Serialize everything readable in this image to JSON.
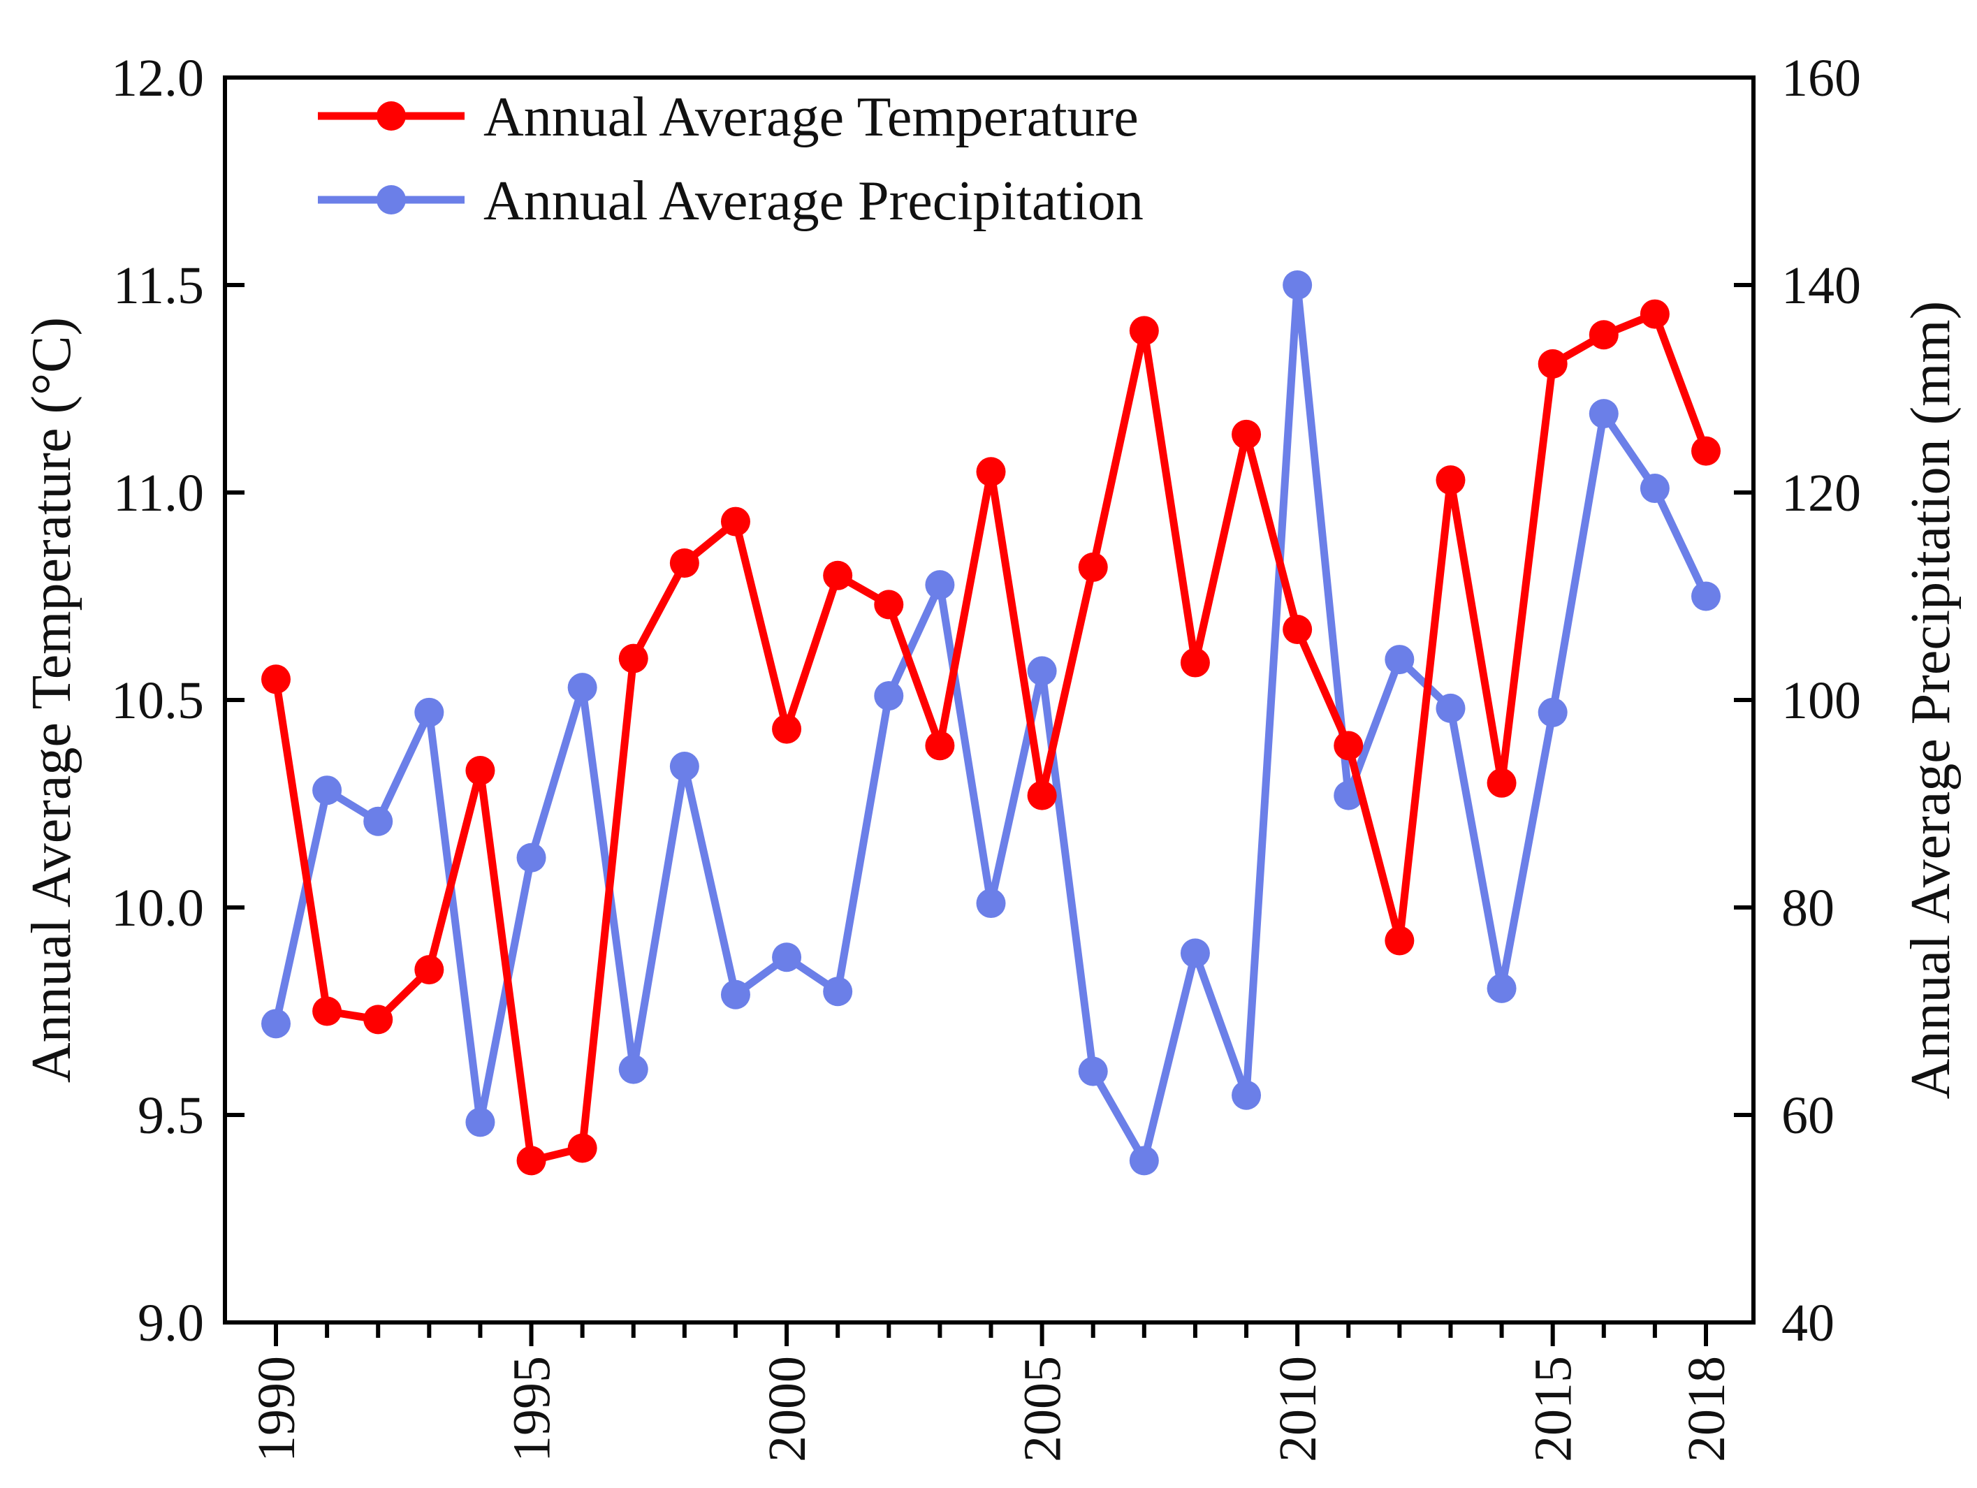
{
  "chart_data": {
    "type": "line",
    "title": "",
    "xlabel": "",
    "x": [
      1990,
      1991,
      1992,
      1993,
      1994,
      1995,
      1996,
      1997,
      1998,
      1999,
      2000,
      2001,
      2002,
      2003,
      2004,
      2005,
      2006,
      2007,
      2008,
      2009,
      2010,
      2011,
      2012,
      2013,
      2014,
      2015,
      2016,
      2017,
      2018
    ],
    "x_tick_labels": [
      "1990",
      "1995",
      "2000",
      "2005",
      "2010",
      "2015",
      "2018"
    ],
    "x_tick_values": [
      1990,
      1995,
      2000,
      2005,
      2010,
      2015,
      2018
    ],
    "left_axis": {
      "label": "Annual Average Temperature (°C)",
      "ylim": [
        9.0,
        12.0
      ],
      "ticks": [
        "9.0",
        "9.5",
        "10.0",
        "10.5",
        "11.0",
        "11.5",
        "12.0"
      ]
    },
    "right_axis": {
      "label": "Annual Average Precipitation (mm)",
      "ylim": [
        40,
        160
      ],
      "ticks": [
        "40",
        "60",
        "80",
        "100",
        "120",
        "140",
        "160"
      ]
    },
    "legend_position": "top-left",
    "series": [
      {
        "name": "Annual Average Temperature",
        "axis": "left",
        "color": "#ff0000",
        "values": [
          10.55,
          9.75,
          9.73,
          9.85,
          10.33,
          9.39,
          9.42,
          10.6,
          10.83,
          10.93,
          10.43,
          10.8,
          10.73,
          10.39,
          11.05,
          10.27,
          10.82,
          11.39,
          10.59,
          11.14,
          10.67,
          10.39,
          9.92,
          11.03,
          10.3,
          11.31,
          11.38,
          11.43,
          11.1
        ]
      },
      {
        "name": "Annual Average Precipitation",
        "axis": "right",
        "color": "#6b7fe8",
        "values": [
          68.8,
          91.3,
          88.3,
          98.8,
          59.3,
          84.8,
          101.2,
          64.4,
          93.6,
          71.6,
          75.2,
          71.9,
          100.4,
          111.1,
          80.4,
          102.8,
          64.2,
          55.6,
          75.6,
          61.9,
          140.0,
          90.8,
          103.9,
          99.2,
          72.2,
          98.8,
          127.6,
          120.4,
          110.0
        ]
      }
    ]
  }
}
